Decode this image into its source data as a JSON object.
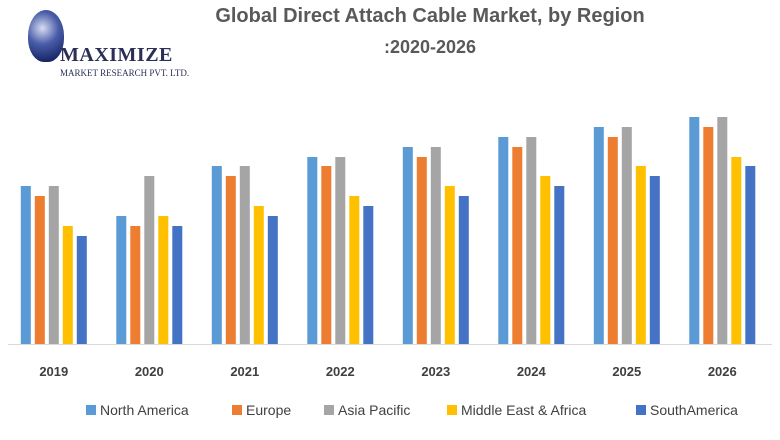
{
  "logo": {
    "name": "MAXIMIZE",
    "subtitle": "MARKET RESEARCH PVT. LTD."
  },
  "chart_data": {
    "type": "bar",
    "title": "Global Direct Attach Cable Market, by Region",
    "subtitle": ":2020-2026",
    "categories": [
      "2019",
      "2020",
      "2021",
      "2022",
      "2023",
      "2024",
      "2025",
      "2026"
    ],
    "series": [
      {
        "name": "North America",
        "color": "#5b9bd5",
        "values": [
          158,
          128,
          178,
          187,
          197,
          207,
          217,
          227
        ]
      },
      {
        "name": "Europe",
        "color": "#ed7d31",
        "values": [
          148,
          118,
          168,
          178,
          187,
          197,
          207,
          217
        ]
      },
      {
        "name": "Asia Pacific",
        "color": "#a5a5a5",
        "values": [
          158,
          168,
          178,
          187,
          197,
          207,
          217,
          227
        ]
      },
      {
        "name": "Middle East & Africa",
        "color": "#ffc000",
        "values": [
          118,
          128,
          138,
          148,
          158,
          168,
          178,
          187
        ]
      },
      {
        "name": "SouthAmerica",
        "color": "#4472c4",
        "values": [
          108,
          118,
          128,
          138,
          148,
          158,
          168,
          178
        ]
      }
    ],
    "xlabel": "",
    "ylabel": "",
    "ylim": [
      0,
      240
    ],
    "grid": false,
    "y_axis_labels": false,
    "legend_position": "bottom"
  }
}
